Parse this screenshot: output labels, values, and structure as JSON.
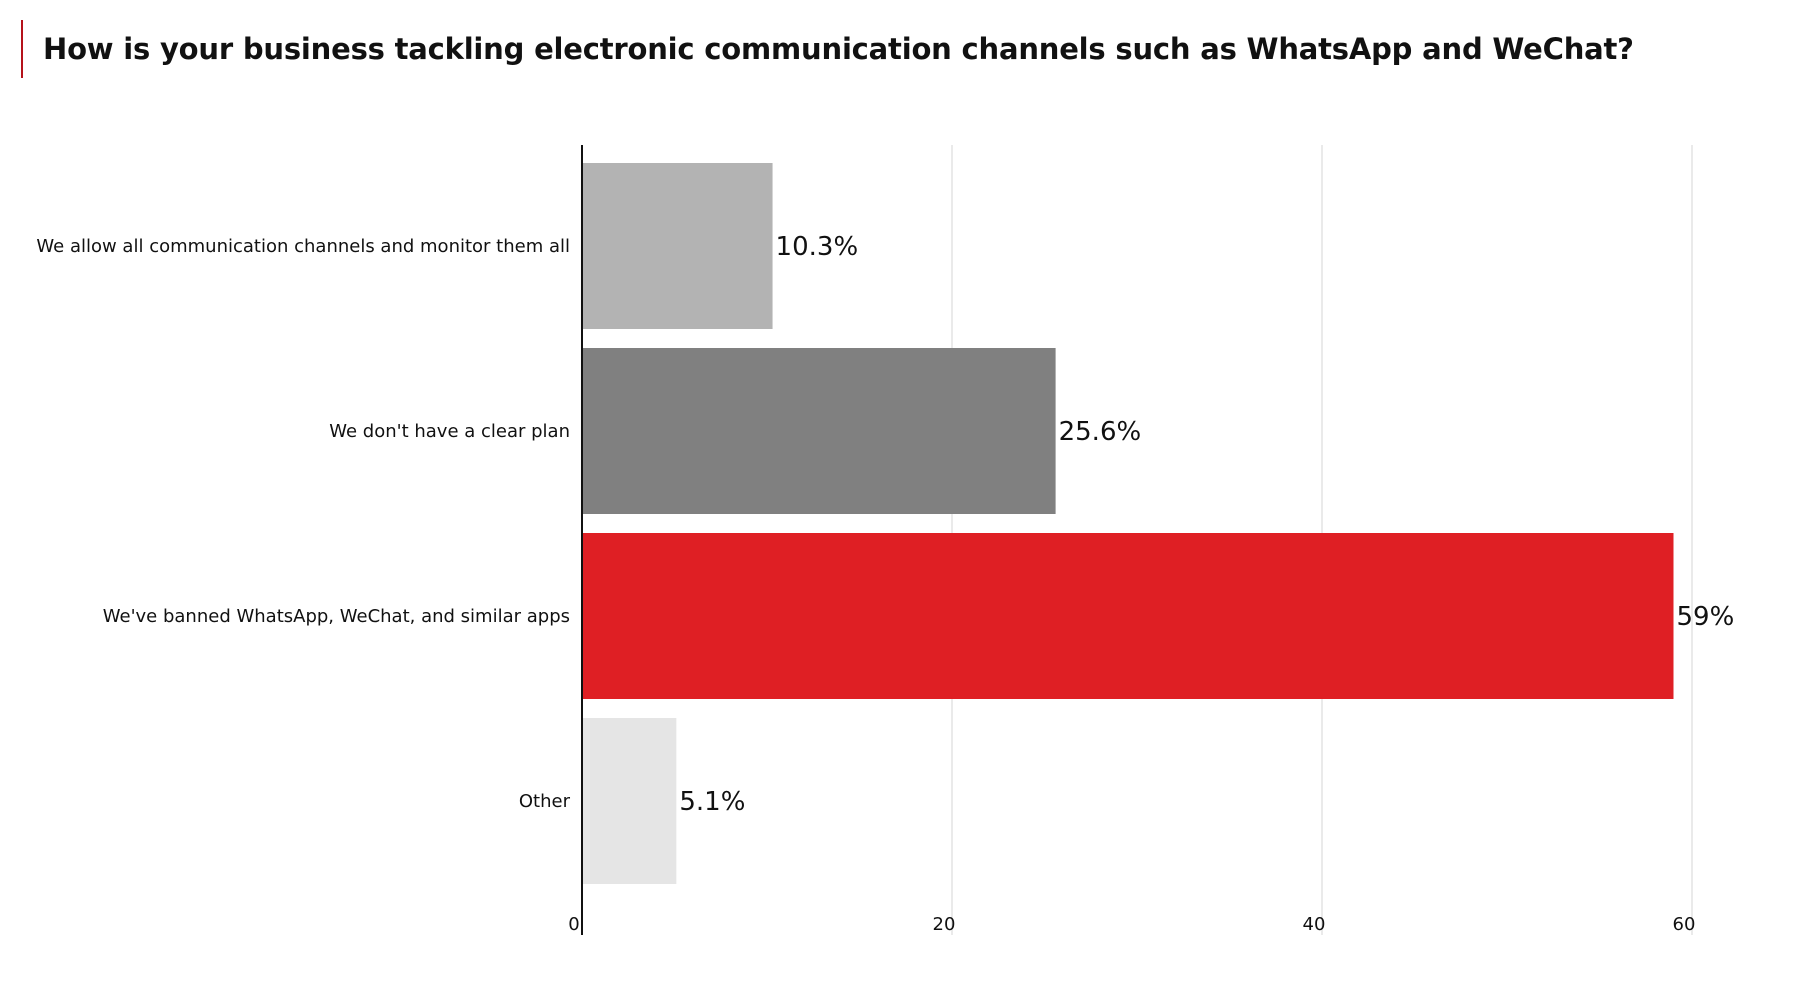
{
  "chart_data": {
    "type": "bar",
    "orientation": "horizontal",
    "title": "How is your business tackling electronic communication channels such as WhatsApp and WeChat?",
    "categories": [
      "We allow all communication channels and monitor them all",
      "We don't have a clear plan",
      "We've banned WhatsApp, WeChat, and similar apps",
      "Other"
    ],
    "values": [
      10.3,
      25.6,
      59,
      5.1
    ],
    "value_labels": [
      "10.3%",
      "25.6%",
      "59%",
      "5.1%"
    ],
    "colors": [
      "#b3b3b3",
      "#808080",
      "#df1f24",
      "#e5e5e5"
    ],
    "accent_color": "#b5121b",
    "xlim": [
      0,
      60
    ],
    "xticks": [
      0,
      20,
      40,
      60
    ],
    "xtick_labels": [
      "0",
      "20",
      "40",
      "60"
    ],
    "grid": "vertical",
    "legend": "none"
  }
}
